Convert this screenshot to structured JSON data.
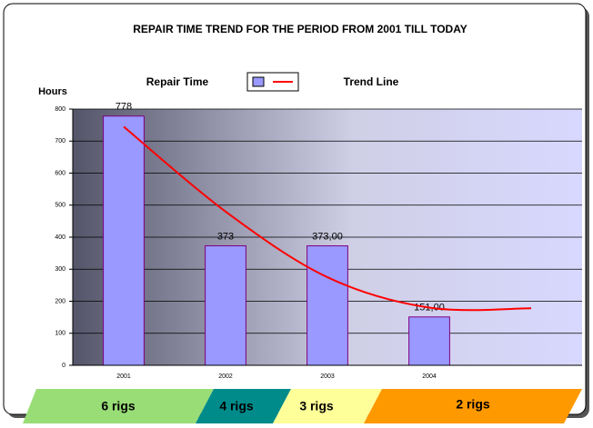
{
  "chart_data": {
    "type": "bar",
    "title": "REPAIR TIME TREND FOR THE PERIOD FROM 2001 TILL TODAY",
    "y_label": "Hours",
    "categories": [
      "2001",
      "2002",
      "2003",
      "2004",
      null
    ],
    "series": [
      {
        "name": "Repair Time",
        "color": "#9999ff",
        "values": [
          778,
          373,
          373,
          151,
          null
        ],
        "value_labels": [
          "778",
          "373",
          "373,00",
          "151,00",
          null
        ]
      },
      {
        "name": "Trend Line",
        "color": "#ff0000",
        "type": "line",
        "values": [
          745,
          480,
          275,
          180,
          178
        ]
      }
    ],
    "ylim": [
      0,
      800
    ],
    "yticks": [
      0,
      100,
      200,
      300,
      400,
      500,
      600,
      700,
      800
    ],
    "grid": true,
    "rig_bands": [
      "6 rigs",
      "4 rigs",
      "3 rigs",
      "2 rigs"
    ]
  }
}
